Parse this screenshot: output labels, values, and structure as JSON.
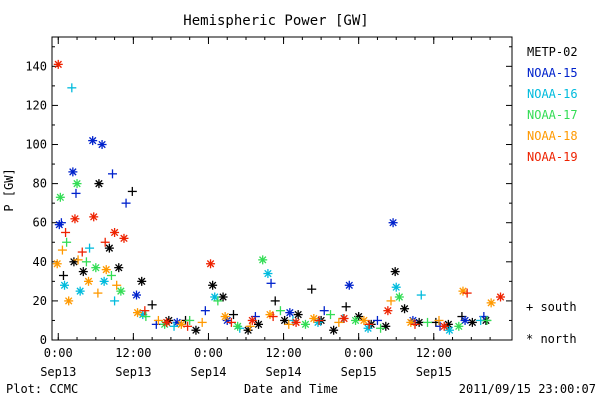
{
  "chart_data": {
    "type": "scatter",
    "title": "Hemispheric Power [GW]",
    "ylabel": "P [GW]",
    "xlabel": "Date and Time",
    "ylim": [
      0,
      155
    ],
    "yticks": [
      0,
      20,
      40,
      60,
      80,
      100,
      120,
      140
    ],
    "xlim": [
      "2011-09-12T23:00",
      "2011-09-16T00:30"
    ],
    "x_ticks": [
      {
        "x": "2011-09-13T00:00",
        "time": "0:00",
        "date": "Sep13"
      },
      {
        "x": "2011-09-13T12:00",
        "time": "12:00",
        "date": "Sep13"
      },
      {
        "x": "2011-09-14T00:00",
        "time": "0:00",
        "date": "Sep14"
      },
      {
        "x": "2011-09-14T12:00",
        "time": "12:00",
        "date": "Sep14"
      },
      {
        "x": "2011-09-15T00:00",
        "time": "0:00",
        "date": "Sep15"
      },
      {
        "x": "2011-09-15T12:00",
        "time": "12:00",
        "date": "Sep15"
      }
    ],
    "marker_legend": [
      {
        "symbol": "+",
        "label": "south"
      },
      {
        "symbol": "*",
        "label": "north"
      }
    ],
    "series": [
      {
        "name": "METP-02",
        "color": "#000000",
        "points": [
          [
            "2011-09-13T00:50",
            "+",
            33
          ],
          [
            "2011-09-13T02:30",
            "*",
            40
          ],
          [
            "2011-09-13T04:00",
            "*",
            35
          ],
          [
            "2011-09-13T06:30",
            "*",
            80
          ],
          [
            "2011-09-13T08:10",
            "*",
            47
          ],
          [
            "2011-09-13T09:40",
            "*",
            37
          ],
          [
            "2011-09-13T11:50",
            "+",
            76
          ],
          [
            "2011-09-13T13:20",
            "*",
            30
          ],
          [
            "2011-09-13T15:00",
            "+",
            18
          ],
          [
            "2011-09-13T17:40",
            "*",
            10
          ],
          [
            "2011-09-13T20:20",
            "+",
            10
          ],
          [
            "2011-09-13T22:00",
            "*",
            5
          ],
          [
            "2011-09-14T00:40",
            "*",
            28
          ],
          [
            "2011-09-14T02:20",
            "*",
            22
          ],
          [
            "2011-09-14T04:00",
            "+",
            13
          ],
          [
            "2011-09-14T06:20",
            "*",
            5
          ],
          [
            "2011-09-14T08:00",
            "*",
            8
          ],
          [
            "2011-09-14T10:40",
            "+",
            20
          ],
          [
            "2011-09-14T12:10",
            "*",
            10
          ],
          [
            "2011-09-14T14:20",
            "*",
            13
          ],
          [
            "2011-09-14T16:30",
            "+",
            26
          ],
          [
            "2011-09-14T18:00",
            "*",
            10
          ],
          [
            "2011-09-14T20:00",
            "*",
            5
          ],
          [
            "2011-09-14T22:00",
            "+",
            17
          ],
          [
            "2011-09-15T00:00",
            "*",
            12
          ],
          [
            "2011-09-15T02:00",
            "*",
            8
          ],
          [
            "2011-09-15T04:20",
            "*",
            7
          ],
          [
            "2011-09-15T05:50",
            "*",
            35
          ],
          [
            "2011-09-15T07:20",
            "*",
            16
          ],
          [
            "2011-09-15T09:40",
            "*",
            9
          ],
          [
            "2011-09-15T12:20",
            "+",
            9
          ],
          [
            "2011-09-15T14:20",
            "*",
            8
          ],
          [
            "2011-09-15T16:30",
            "+",
            12
          ],
          [
            "2011-09-15T18:10",
            "*",
            9
          ],
          [
            "2011-09-15T20:20",
            "*",
            10
          ]
        ]
      },
      {
        "name": "NOAA-15",
        "color": "#0022cc",
        "points": [
          [
            "2011-09-13T00:10",
            "*",
            59
          ],
          [
            "2011-09-13T00:30",
            "+",
            60
          ],
          [
            "2011-09-13T02:20",
            "*",
            86
          ],
          [
            "2011-09-13T02:50",
            "+",
            75
          ],
          [
            "2011-09-13T05:30",
            "*",
            102
          ],
          [
            "2011-09-13T07:00",
            "*",
            100
          ],
          [
            "2011-09-13T08:40",
            "+",
            85
          ],
          [
            "2011-09-13T10:50",
            "+",
            70
          ],
          [
            "2011-09-13T12:30",
            "*",
            23
          ],
          [
            "2011-09-13T15:40",
            "+",
            8
          ],
          [
            "2011-09-13T19:00",
            "*",
            9
          ],
          [
            "2011-09-13T23:30",
            "+",
            15
          ],
          [
            "2011-09-14T03:00",
            "*",
            10
          ],
          [
            "2011-09-14T07:30",
            "+",
            12
          ],
          [
            "2011-09-14T10:00",
            "+",
            29
          ],
          [
            "2011-09-14T13:00",
            "*",
            14
          ],
          [
            "2011-09-14T18:30",
            "+",
            15
          ],
          [
            "2011-09-14T22:30",
            "*",
            28
          ],
          [
            "2011-09-15T03:00",
            "+",
            10
          ],
          [
            "2011-09-15T05:30",
            "*",
            60
          ],
          [
            "2011-09-15T08:40",
            "*",
            10
          ],
          [
            "2011-09-15T13:00",
            "+",
            7
          ],
          [
            "2011-09-15T17:00",
            "*",
            10
          ],
          [
            "2011-09-15T20:00",
            "+",
            12
          ]
        ]
      },
      {
        "name": "NOAA-16",
        "color": "#00bbdd",
        "points": [
          [
            "2011-09-13T01:00",
            "*",
            28
          ],
          [
            "2011-09-13T02:10",
            "+",
            129
          ],
          [
            "2011-09-13T03:30",
            "*",
            25
          ],
          [
            "2011-09-13T05:00",
            "+",
            47
          ],
          [
            "2011-09-13T07:20",
            "*",
            30
          ],
          [
            "2011-09-13T09:00",
            "+",
            20
          ],
          [
            "2011-09-13T13:30",
            "*",
            13
          ],
          [
            "2011-09-13T18:30",
            "+",
            7
          ],
          [
            "2011-09-14T01:00",
            "*",
            22
          ],
          [
            "2011-09-14T05:00",
            "+",
            6
          ],
          [
            "2011-09-14T09:30",
            "*",
            34
          ],
          [
            "2011-09-14T13:30",
            "+",
            10
          ],
          [
            "2011-09-14T17:30",
            "*",
            9
          ],
          [
            "2011-09-14T21:30",
            "+",
            11
          ],
          [
            "2011-09-15T01:30",
            "*",
            6
          ],
          [
            "2011-09-15T06:00",
            "*",
            27
          ],
          [
            "2011-09-15T10:00",
            "+",
            23
          ],
          [
            "2011-09-15T14:30",
            "*",
            5
          ],
          [
            "2011-09-15T19:30",
            "+",
            10
          ]
        ]
      },
      {
        "name": "NOAA-17",
        "color": "#33dd55",
        "points": [
          [
            "2011-09-13T00:20",
            "*",
            73
          ],
          [
            "2011-09-13T01:20",
            "+",
            50
          ],
          [
            "2011-09-13T03:00",
            "*",
            80
          ],
          [
            "2011-09-13T04:30",
            "+",
            40
          ],
          [
            "2011-09-13T06:00",
            "*",
            37
          ],
          [
            "2011-09-13T08:30",
            "+",
            33
          ],
          [
            "2011-09-13T10:00",
            "*",
            25
          ],
          [
            "2011-09-13T14:00",
            "+",
            12
          ],
          [
            "2011-09-13T17:00",
            "*",
            8
          ],
          [
            "2011-09-13T21:00",
            "+",
            10
          ],
          [
            "2011-09-14T01:30",
            "+",
            20
          ],
          [
            "2011-09-14T04:40",
            "*",
            7
          ],
          [
            "2011-09-14T08:40",
            "*",
            41
          ],
          [
            "2011-09-14T11:30",
            "+",
            15
          ],
          [
            "2011-09-14T15:30",
            "*",
            8
          ],
          [
            "2011-09-14T19:30",
            "+",
            13
          ],
          [
            "2011-09-14T23:30",
            "*",
            10
          ],
          [
            "2011-09-15T03:30",
            "+",
            6
          ],
          [
            "2011-09-15T06:30",
            "*",
            22
          ],
          [
            "2011-09-15T11:00",
            "+",
            9
          ],
          [
            "2011-09-15T16:00",
            "*",
            7
          ],
          [
            "2011-09-15T20:30",
            "+",
            10
          ]
        ]
      },
      {
        "name": "NOAA-18",
        "color": "#ff9900",
        "points": [
          [
            "2011-09-12T23:50",
            "*",
            39
          ],
          [
            "2011-09-13T00:40",
            "+",
            46
          ],
          [
            "2011-09-13T01:40",
            "*",
            20
          ],
          [
            "2011-09-13T03:10",
            "+",
            41
          ],
          [
            "2011-09-13T04:50",
            "*",
            30
          ],
          [
            "2011-09-13T06:20",
            "+",
            24
          ],
          [
            "2011-09-13T07:40",
            "*",
            36
          ],
          [
            "2011-09-13T09:20",
            "+",
            28
          ],
          [
            "2011-09-13T12:40",
            "*",
            14
          ],
          [
            "2011-09-13T16:00",
            "+",
            10
          ],
          [
            "2011-09-13T19:40",
            "*",
            8
          ],
          [
            "2011-09-13T23:00",
            "+",
            9
          ],
          [
            "2011-09-14T02:40",
            "*",
            12
          ],
          [
            "2011-09-14T06:40",
            "+",
            7
          ],
          [
            "2011-09-14T09:50",
            "*",
            13
          ],
          [
            "2011-09-14T12:50",
            "+",
            8
          ],
          [
            "2011-09-14T16:50",
            "*",
            11
          ],
          [
            "2011-09-14T20:50",
            "+",
            9
          ],
          [
            "2011-09-15T00:50",
            "*",
            10
          ],
          [
            "2011-09-15T05:10",
            "+",
            20
          ],
          [
            "2011-09-15T08:20",
            "*",
            9
          ],
          [
            "2011-09-15T12:50",
            "+",
            10
          ],
          [
            "2011-09-15T16:40",
            "*",
            25
          ],
          [
            "2011-09-15T21:10",
            "*",
            19
          ]
        ]
      },
      {
        "name": "NOAA-19",
        "color": "#ee2200",
        "points": [
          [
            "2011-09-13T00:00",
            "*",
            141
          ],
          [
            "2011-09-13T01:10",
            "+",
            55
          ],
          [
            "2011-09-13T02:40",
            "*",
            62
          ],
          [
            "2011-09-13T03:50",
            "+",
            45
          ],
          [
            "2011-09-13T05:40",
            "*",
            63
          ],
          [
            "2011-09-13T07:30",
            "+",
            50
          ],
          [
            "2011-09-13T09:00",
            "*",
            55
          ],
          [
            "2011-09-13T10:30",
            "*",
            52
          ],
          [
            "2011-09-13T13:50",
            "+",
            15
          ],
          [
            "2011-09-13T17:20",
            "*",
            9
          ],
          [
            "2011-09-13T20:40",
            "+",
            7
          ],
          [
            "2011-09-14T00:20",
            "*",
            39
          ],
          [
            "2011-09-14T03:40",
            "+",
            9
          ],
          [
            "2011-09-14T07:00",
            "*",
            10
          ],
          [
            "2011-09-14T10:20",
            "+",
            12
          ],
          [
            "2011-09-14T14:00",
            "*",
            9
          ],
          [
            "2011-09-14T17:40",
            "+",
            10
          ],
          [
            "2011-09-14T21:40",
            "*",
            11
          ],
          [
            "2011-09-15T01:40",
            "+",
            8
          ],
          [
            "2011-09-15T04:40",
            "*",
            15
          ],
          [
            "2011-09-15T09:00",
            "+",
            8
          ],
          [
            "2011-09-15T13:40",
            "*",
            7
          ],
          [
            "2011-09-15T17:20",
            "+",
            24
          ],
          [
            "2011-09-15T22:40",
            "*",
            22
          ]
        ]
      }
    ]
  },
  "footer": {
    "left": "Plot: CCMC",
    "right": "2011/09/15 23:00:07"
  }
}
